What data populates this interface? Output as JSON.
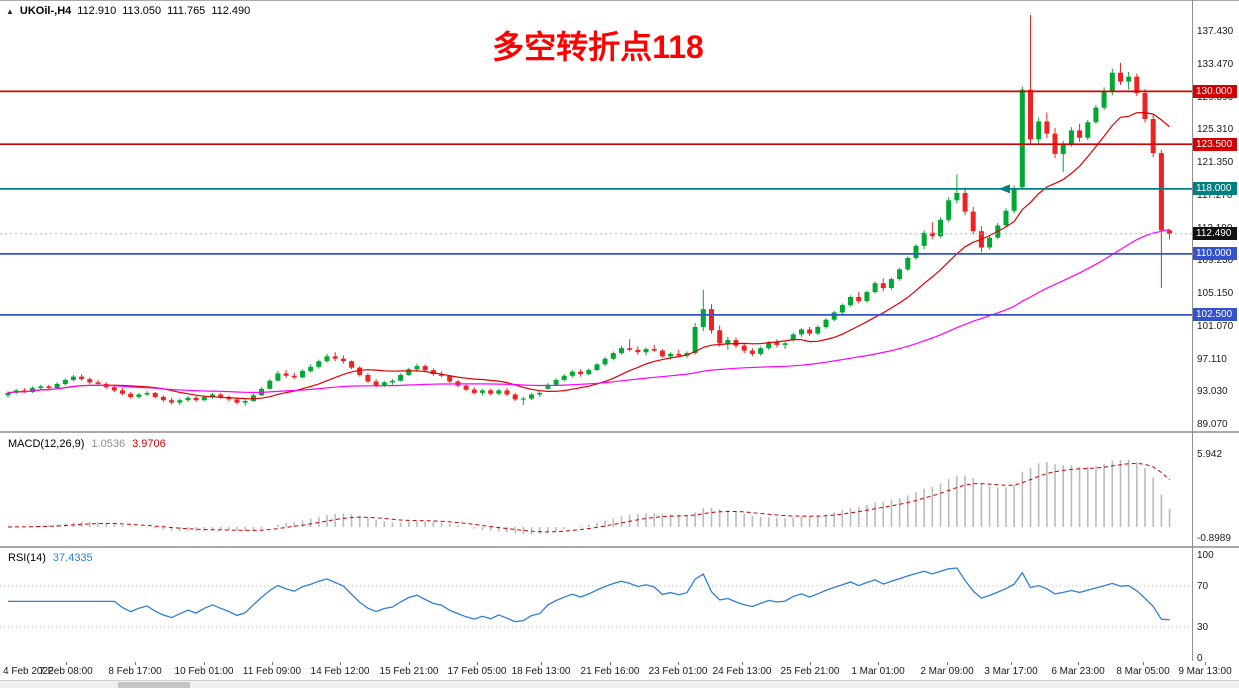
{
  "header": {
    "expander_icon": "triangle",
    "symbol": "UKOil-,H4",
    "open": "112.910",
    "high": "113.050",
    "low": "111.765",
    "close": "112.490"
  },
  "colors": {
    "background": "#FFFFFF",
    "bull": "#00A832",
    "bear": "#EE2222",
    "ma_fast": "#DD0000",
    "ma_slow": "#FF00FF",
    "macd_histogram": "#BBBBBB",
    "macd_signal": "#CC0000",
    "rsi_line": "#2F7ED8",
    "annotation": "#FF0000",
    "level_red": "#D40000",
    "level_teal": "#008080",
    "level_blue": "#3352CC",
    "current_price_box": "#101010"
  },
  "price_axis": {
    "ticks": [
      "137.430",
      "133.470",
      "129.390",
      "125.310",
      "121.350",
      "117.270",
      "113.190",
      "109.230",
      "105.150",
      "101.070",
      "97.110",
      "93.030",
      "89.070"
    ]
  },
  "chart_data": {
    "type": "candlestick",
    "symbol": "UKOil-",
    "timeframe": "H4",
    "title_annotation": "多空转折点118",
    "y_axis": {
      "min": 89.07,
      "max": 137.43
    },
    "legend_position": "none",
    "grid": false,
    "current_price": {
      "value": 112.49,
      "label": "112.490"
    },
    "horizontal_levels": [
      {
        "label": "130.000",
        "price": 130.0,
        "color": "#D40000"
      },
      {
        "label": "123.500",
        "price": 123.5,
        "color": "#D40000"
      },
      {
        "label": "118.000",
        "price": 118.0,
        "color": "#008080"
      },
      {
        "label": "110.000",
        "price": 110.0,
        "color": "#3352CC"
      },
      {
        "label": "102.500",
        "price": 102.5,
        "color": "#3352CC"
      }
    ],
    "arrow_marker": {
      "index": 122,
      "price": 118.0,
      "color": "#008080"
    },
    "moving_averages": [
      {
        "name": "ma-fast-red",
        "period": 13,
        "color": "#DD0000"
      },
      {
        "name": "ma-slow-magenta",
        "period": 55,
        "color": "#FF00FF"
      }
    ],
    "indicators": {
      "macd": {
        "label": "MACD(12,26,9)",
        "params": [
          12,
          26,
          9
        ],
        "main_value": "1.0536",
        "signal_value": "3.9706",
        "scale_ticks": [
          {
            "label": "5.942",
            "value": 5.942
          },
          {
            "label": "-0.8989",
            "value": -0.8989
          }
        ]
      },
      "rsi": {
        "label": "RSI(14)",
        "period": 14,
        "value": "37.4335",
        "scale_ticks": [
          {
            "label": "100",
            "value": 100
          },
          {
            "label": "70",
            "value": 70
          },
          {
            "label": "30",
            "value": 30
          },
          {
            "label": "0",
            "value": 0
          }
        ],
        "level_lines": [
          70,
          30
        ]
      }
    },
    "time_labels": [
      "4 Feb 2022",
      "7 Feb 08:00",
      "8 Feb 17:00",
      "10 Feb 01:00",
      "11 Feb 09:00",
      "14 Feb 12:00",
      "15 Feb 21:00",
      "17 Feb 05:00",
      "18 Feb 13:00",
      "21 Feb 16:00",
      "23 Feb 01:00",
      "24 Feb 13:00",
      "25 Feb 21:00",
      "1 Mar 01:00",
      "2 Mar 09:00",
      "3 Mar 17:00",
      "6 Mar 23:00",
      "8 Mar 05:00",
      "9 Mar 13:00"
    ],
    "candles": [
      [
        92.6,
        93.1,
        92.3,
        92.9
      ],
      [
        92.9,
        93.4,
        92.7,
        93.2
      ],
      [
        93.2,
        93.5,
        92.9,
        93.0
      ],
      [
        93.0,
        93.7,
        92.9,
        93.5
      ],
      [
        93.5,
        93.9,
        93.2,
        93.7
      ],
      [
        93.7,
        93.9,
        93.3,
        93.5
      ],
      [
        93.5,
        94.2,
        93.4,
        94.0
      ],
      [
        94.0,
        94.7,
        93.8,
        94.5
      ],
      [
        94.5,
        95.1,
        94.3,
        94.9
      ],
      [
        94.9,
        95.2,
        94.4,
        94.6
      ],
      [
        94.6,
        94.8,
        94.0,
        94.2
      ],
      [
        94.2,
        94.5,
        93.8,
        94.0
      ],
      [
        94.0,
        94.2,
        93.4,
        93.6
      ],
      [
        93.6,
        93.8,
        93.0,
        93.2
      ],
      [
        93.2,
        93.5,
        92.6,
        92.8
      ],
      [
        92.8,
        93.0,
        92.2,
        92.4
      ],
      [
        92.4,
        92.9,
        92.2,
        92.7
      ],
      [
        92.7,
        93.1,
        92.5,
        92.9
      ],
      [
        92.9,
        93.0,
        92.2,
        92.4
      ],
      [
        92.4,
        92.6,
        91.8,
        92.0
      ],
      [
        92.0,
        92.3,
        91.5,
        91.7
      ],
      [
        91.7,
        92.2,
        91.4,
        92.0
      ],
      [
        92.0,
        92.5,
        91.8,
        92.3
      ],
      [
        92.3,
        92.5,
        91.8,
        92.0
      ],
      [
        92.0,
        92.6,
        91.9,
        92.4
      ],
      [
        92.4,
        92.9,
        92.2,
        92.7
      ],
      [
        92.7,
        92.9,
        92.2,
        92.4
      ],
      [
        92.4,
        92.6,
        91.9,
        92.1
      ],
      [
        92.1,
        92.3,
        91.5,
        91.7
      ],
      [
        91.7,
        92.1,
        91.3,
        91.9
      ],
      [
        91.9,
        92.8,
        91.8,
        92.6
      ],
      [
        92.6,
        93.6,
        92.5,
        93.4
      ],
      [
        93.4,
        94.6,
        93.3,
        94.4
      ],
      [
        94.4,
        95.6,
        94.3,
        95.3
      ],
      [
        95.3,
        95.7,
        94.7,
        95.0
      ],
      [
        95.0,
        95.4,
        94.6,
        94.8
      ],
      [
        94.8,
        95.8,
        94.7,
        95.6
      ],
      [
        95.6,
        96.4,
        95.4,
        96.1
      ],
      [
        96.1,
        97.0,
        95.9,
        96.8
      ],
      [
        96.8,
        97.7,
        96.6,
        97.4
      ],
      [
        97.4,
        97.9,
        96.8,
        97.1
      ],
      [
        97.1,
        97.5,
        96.5,
        96.8
      ],
      [
        96.8,
        96.9,
        95.8,
        96.0
      ],
      [
        96.0,
        96.2,
        94.9,
        95.1
      ],
      [
        95.1,
        95.3,
        94.1,
        94.3
      ],
      [
        94.3,
        94.6,
        93.6,
        93.8
      ],
      [
        93.8,
        94.4,
        93.6,
        94.2
      ],
      [
        94.2,
        94.6,
        93.9,
        94.4
      ],
      [
        94.4,
        95.3,
        94.3,
        95.1
      ],
      [
        95.1,
        96.0,
        95.0,
        95.8
      ],
      [
        95.8,
        96.5,
        95.5,
        96.2
      ],
      [
        96.2,
        96.4,
        95.5,
        95.7
      ],
      [
        95.7,
        95.9,
        95.0,
        95.2
      ],
      [
        95.2,
        95.5,
        94.8,
        95.0
      ],
      [
        95.0,
        95.1,
        94.1,
        94.3
      ],
      [
        94.3,
        94.5,
        93.6,
        93.8
      ],
      [
        93.8,
        94.0,
        93.1,
        93.3
      ],
      [
        93.3,
        93.6,
        92.7,
        92.9
      ],
      [
        92.9,
        93.4,
        92.6,
        93.2
      ],
      [
        93.2,
        93.4,
        92.6,
        92.8
      ],
      [
        92.8,
        93.4,
        92.6,
        93.2
      ],
      [
        93.2,
        93.5,
        92.5,
        92.7
      ],
      [
        92.7,
        92.9,
        91.9,
        92.1
      ],
      [
        92.1,
        92.4,
        91.4,
        92.2
      ],
      [
        92.2,
        92.9,
        92.0,
        92.7
      ],
      [
        92.7,
        93.1,
        92.4,
        92.9
      ],
      [
        93.4,
        94.1,
        93.3,
        93.9
      ],
      [
        93.9,
        94.7,
        93.8,
        94.5
      ],
      [
        94.5,
        95.2,
        94.3,
        95.0
      ],
      [
        95.0,
        95.7,
        94.8,
        95.5
      ],
      [
        95.5,
        95.8,
        94.9,
        95.2
      ],
      [
        95.2,
        95.9,
        95.1,
        95.7
      ],
      [
        95.7,
        96.6,
        95.6,
        96.4
      ],
      [
        96.4,
        97.3,
        96.2,
        97.1
      ],
      [
        97.1,
        98.0,
        96.9,
        97.8
      ],
      [
        97.8,
        98.7,
        97.6,
        98.4
      ],
      [
        98.4,
        99.5,
        98.0,
        98.2
      ],
      [
        98.2,
        98.6,
        97.6,
        97.9
      ],
      [
        97.9,
        98.5,
        97.5,
        98.3
      ],
      [
        98.3,
        98.8,
        97.9,
        98.1
      ],
      [
        98.1,
        98.3,
        97.2,
        97.4
      ],
      [
        97.4,
        97.9,
        97.0,
        97.7
      ],
      [
        97.7,
        98.2,
        97.3,
        97.5
      ],
      [
        97.5,
        98.0,
        97.2,
        97.8
      ],
      [
        97.8,
        101.5,
        97.6,
        101.0
      ],
      [
        101.0,
        105.6,
        100.5,
        103.2
      ],
      [
        103.2,
        103.8,
        100.2,
        100.6
      ],
      [
        100.6,
        101.2,
        98.6,
        99.0
      ],
      [
        99.0,
        99.8,
        98.2,
        99.4
      ],
      [
        99.4,
        99.7,
        98.4,
        98.7
      ],
      [
        98.7,
        99.0,
        97.8,
        98.1
      ],
      [
        98.1,
        98.4,
        97.4,
        97.7
      ],
      [
        97.7,
        98.6,
        97.5,
        98.4
      ],
      [
        98.4,
        99.3,
        98.2,
        99.1
      ],
      [
        99.1,
        99.5,
        98.5,
        98.8
      ],
      [
        98.8,
        99.2,
        98.3,
        99.0
      ],
      [
        99.4,
        100.3,
        99.2,
        100.1
      ],
      [
        100.1,
        100.9,
        99.8,
        100.7
      ],
      [
        100.7,
        101.0,
        99.9,
        100.2
      ],
      [
        100.2,
        101.2,
        100.0,
        101.0
      ],
      [
        101.0,
        102.1,
        100.8,
        101.9
      ],
      [
        101.9,
        103.0,
        101.7,
        102.8
      ],
      [
        102.8,
        103.9,
        102.6,
        103.7
      ],
      [
        103.7,
        104.9,
        103.5,
        104.7
      ],
      [
        104.7,
        105.3,
        103.9,
        104.2
      ],
      [
        104.2,
        105.5,
        104.0,
        105.3
      ],
      [
        105.3,
        106.6,
        105.1,
        106.4
      ],
      [
        106.4,
        107.0,
        105.4,
        105.8
      ],
      [
        105.8,
        107.1,
        105.6,
        106.9
      ],
      [
        106.9,
        108.3,
        106.7,
        108.1
      ],
      [
        108.1,
        109.7,
        107.9,
        109.5
      ],
      [
        109.5,
        111.2,
        109.3,
        111.0
      ],
      [
        111.0,
        112.9,
        110.6,
        112.6
      ],
      [
        112.6,
        113.9,
        111.8,
        112.2
      ],
      [
        112.2,
        114.5,
        112.0,
        114.2
      ],
      [
        114.2,
        117.0,
        113.9,
        116.6
      ],
      [
        116.6,
        119.8,
        116.2,
        117.5
      ],
      [
        117.5,
        118.2,
        114.8,
        115.2
      ],
      [
        115.2,
        115.8,
        112.4,
        112.8
      ],
      [
        112.8,
        113.4,
        110.2,
        110.8
      ],
      [
        110.8,
        112.2,
        110.5,
        112.0
      ],
      [
        112.0,
        113.8,
        111.8,
        113.5
      ],
      [
        113.5,
        115.6,
        113.3,
        115.3
      ],
      [
        115.3,
        118.4,
        115.0,
        118.0
      ],
      [
        118.2,
        130.6,
        118.0,
        130.2
      ],
      [
        130.2,
        139.4,
        123.4,
        124.1
      ],
      [
        124.1,
        126.8,
        123.5,
        126.3
      ],
      [
        126.3,
        127.4,
        124.2,
        124.8
      ],
      [
        124.8,
        125.5,
        121.8,
        122.3
      ],
      [
        122.3,
        123.9,
        120.1,
        123.5
      ],
      [
        123.5,
        125.6,
        123.2,
        125.2
      ],
      [
        125.2,
        126.0,
        123.8,
        124.3
      ],
      [
        124.3,
        126.5,
        124.0,
        126.2
      ],
      [
        126.2,
        128.3,
        126.0,
        128.0
      ],
      [
        128.0,
        130.5,
        127.7,
        130.1
      ],
      [
        130.1,
        132.8,
        129.5,
        132.3
      ],
      [
        132.3,
        133.5,
        130.8,
        131.2
      ],
      [
        131.2,
        132.4,
        130.2,
        131.8
      ],
      [
        131.8,
        132.2,
        129.4,
        129.8
      ],
      [
        129.8,
        130.3,
        126.2,
        126.6
      ],
      [
        126.6,
        127.1,
        121.9,
        122.4
      ],
      [
        122.4,
        122.8,
        105.8,
        112.9
      ],
      [
        112.91,
        113.05,
        111.77,
        112.49
      ]
    ]
  }
}
